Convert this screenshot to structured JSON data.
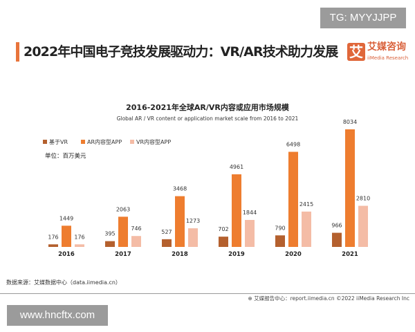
{
  "watermark_top": "TG: MYYJJPP",
  "watermark_bottom": "www.hncftx.com",
  "header": {
    "title": "2022年中国电子竞技发展驱动力：VR/AR技术助力发展",
    "logo_glyph": "艾",
    "logo_cn": "艾媒咨询",
    "logo_en": "iiMedia Research"
  },
  "source": "数据来源：艾媒数据中心（data.iimedia.cn）",
  "footer": "艾媒报告中心：report.iimedia.cn   ©2022  iiMedia Research  Inc",
  "colors": {
    "accent": "#e8743b",
    "vr": "#b4602e",
    "ar": "#ee7d2f",
    "vrapp": "#f4bca6"
  },
  "chart_data": {
    "type": "bar",
    "title": "2016-2021年全球AR/VR内容或应用市场规模",
    "subtitle": "Global AR / VR content or application market scale from 2016 to 2021",
    "unit": "单位：百万美元",
    "categories": [
      "2016",
      "2017",
      "2018",
      "2019",
      "2020",
      "2021"
    ],
    "series": [
      {
        "name": "基于VR",
        "values": [
          176,
          395,
          527,
          702,
          790,
          966
        ]
      },
      {
        "name": "AR内容型APP",
        "values": [
          1449,
          2063,
          3468,
          4961,
          6498,
          8034
        ]
      },
      {
        "name": "VR内容型APP",
        "values": [
          176,
          746,
          1273,
          1844,
          2415,
          2810
        ]
      }
    ],
    "legend": "top-left",
    "grid": false
  }
}
